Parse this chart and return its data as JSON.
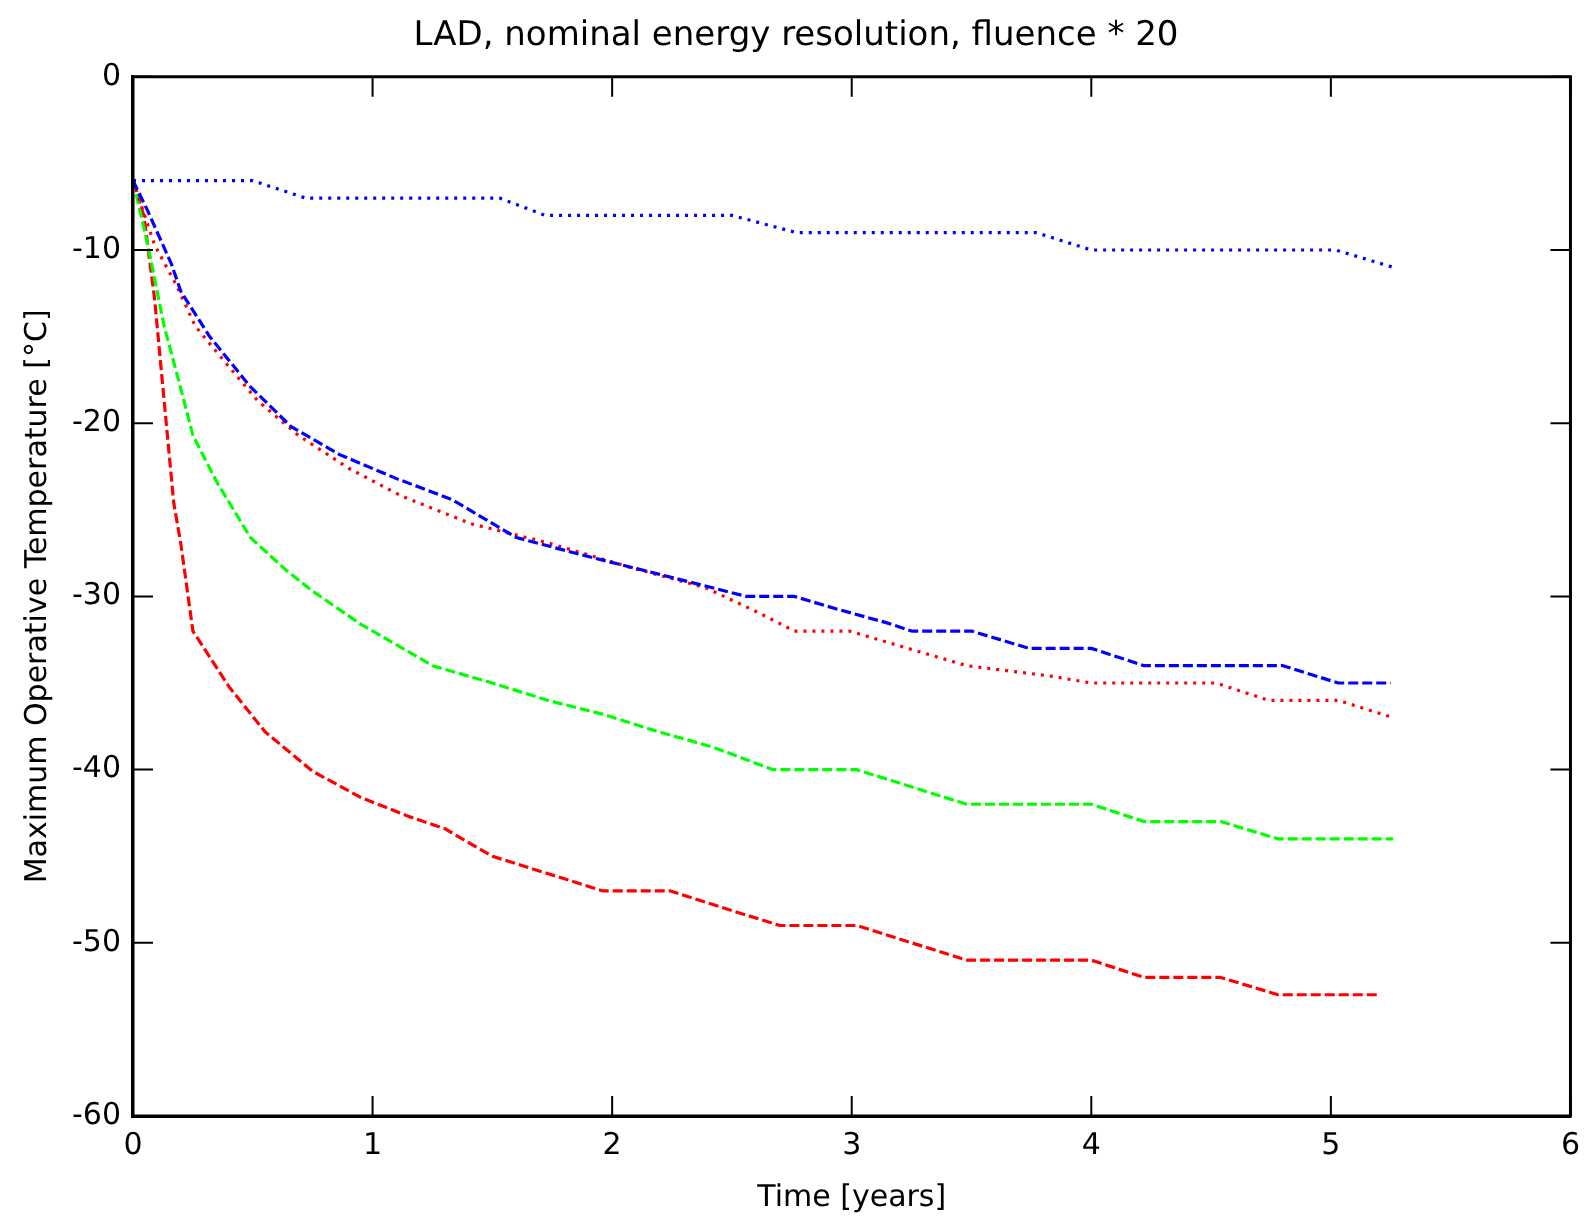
{
  "chart_data": {
    "type": "line",
    "title": "LAD, nominal energy resolution, fluence * 20",
    "xlabel": "Time [years]",
    "ylabel": "Maximum Operative Temperature [°C]",
    "xlim": [
      0,
      6
    ],
    "xticks": [
      0,
      1,
      2,
      3,
      4,
      5,
      6
    ],
    "ylim": [
      -60,
      0
    ],
    "yticks": [
      -60,
      -50,
      -40,
      -30,
      -20,
      -10,
      0
    ],
    "grid": false,
    "legend": false,
    "marker": "none",
    "series": [
      {
        "color": "#0000ff",
        "line_style": "dotted",
        "x": [
          0,
          0.5,
          0.72,
          1.53,
          1.72,
          2.5,
          2.77,
          3.77,
          4.0,
          5.02,
          5.26
        ],
        "values": [
          -6,
          -6,
          -7,
          -7,
          -8,
          -8,
          -9,
          -9,
          -10,
          -10,
          -11
        ]
      },
      {
        "color": "#0000ff",
        "line_style": "dashed",
        "x": [
          0,
          0.06,
          0.16,
          0.2,
          0.32,
          0.49,
          0.66,
          0.86,
          1.1,
          1.33,
          1.6,
          1.9,
          2.19,
          2.56,
          2.76,
          2.93,
          3.14,
          3.25,
          3.5,
          3.74,
          4.0,
          4.22,
          4.8,
          5.03,
          5.25
        ],
        "values": [
          -6,
          -7.7,
          -10.8,
          -12.4,
          -15,
          -17.9,
          -20.2,
          -21.8,
          -23.2,
          -24.4,
          -26.6,
          -27.7,
          -28.7,
          -30,
          -30,
          -30.7,
          -31.5,
          -32,
          -32,
          -33,
          -33,
          -34,
          -34,
          -35,
          -35
        ]
      },
      {
        "color": "#ff0000",
        "line_style": "dotted",
        "x": [
          0,
          0.09,
          0.18,
          0.26,
          0.38,
          0.52,
          0.69,
          0.9,
          1.12,
          1.41,
          1.73,
          2.07,
          2.39,
          2.62,
          2.76,
          2.99,
          3.48,
          3.83,
          4.0,
          4.52,
          4.74,
          5.03,
          5.26
        ],
        "values": [
          -6,
          -9.7,
          -12,
          -14.4,
          -16.4,
          -18.7,
          -20.7,
          -22.6,
          -24.2,
          -25.8,
          -26.9,
          -28.3,
          -29.5,
          -31,
          -32,
          -32,
          -34,
          -34.6,
          -35,
          -35,
          -36,
          -36,
          -37
        ]
      },
      {
        "color": "#00ff00",
        "line_style": "dashed",
        "x": [
          0,
          0.06,
          0.13,
          0.19,
          0.25,
          0.35,
          0.49,
          0.64,
          0.75,
          0.95,
          1.25,
          1.5,
          1.73,
          1.96,
          2.19,
          2.42,
          2.67,
          3.02,
          3.25,
          3.48,
          4.0,
          4.22,
          4.54,
          4.78,
          5.26
        ],
        "values": [
          -6,
          -9.6,
          -14.4,
          -17.5,
          -20.7,
          -23.4,
          -26.6,
          -28.5,
          -29.7,
          -31.6,
          -34,
          -35,
          -36,
          -36.8,
          -37.8,
          -38.7,
          -40,
          -40,
          -41,
          -42,
          -42,
          -43,
          -43,
          -44,
          -44
        ]
      },
      {
        "color": "#ff0000",
        "line_style": "dashed",
        "x": [
          0,
          0.045,
          0.09,
          0.13,
          0.17,
          0.2,
          0.25,
          0.4,
          0.55,
          0.75,
          0.95,
          1.15,
          1.3,
          1.5,
          1.73,
          1.96,
          2.24,
          2.56,
          2.7,
          3.02,
          3.48,
          4.0,
          4.22,
          4.54,
          4.78,
          5.2
        ],
        "values": [
          -6,
          -8,
          -12.8,
          -18.7,
          -24.6,
          -27,
          -32,
          -35.2,
          -37.8,
          -40.1,
          -41.6,
          -42.7,
          -43.4,
          -45,
          -46,
          -47,
          -47,
          -48.4,
          -49,
          -49,
          -51,
          -51,
          -52,
          -52,
          -53,
          -53
        ]
      }
    ]
  }
}
